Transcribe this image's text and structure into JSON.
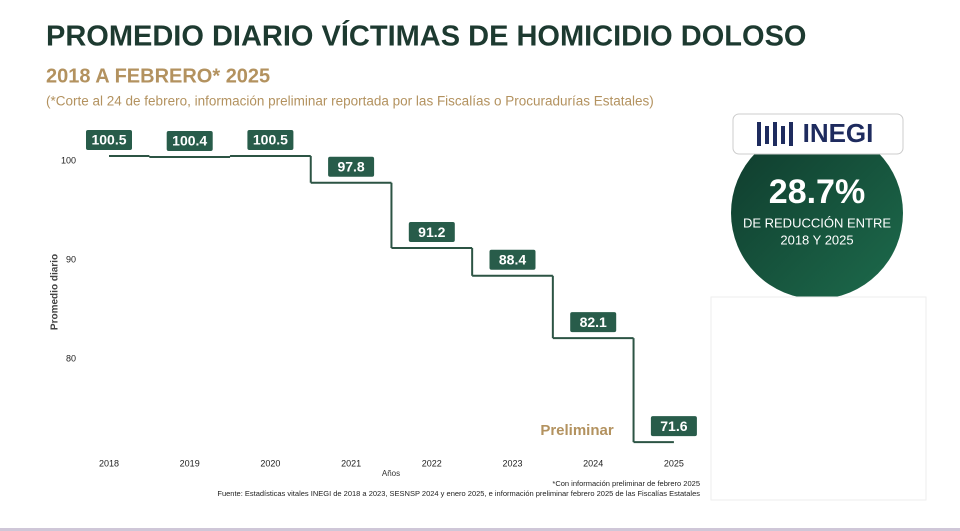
{
  "chart_data": {
    "type": "step",
    "title": "PROMEDIO DIARIO VÍCTIMAS DE HOMICIDIO DOLOSO",
    "subtitle": "2018 A FEBRERO* 2025",
    "note": "(*Corte al 24 de febrero, información preliminar reportada por las Fiscalías o Procuradurías Estatales)",
    "categories": [
      "2018",
      "2019",
      "2020",
      "2021",
      "2022",
      "2023",
      "2024",
      "2025"
    ],
    "values": [
      100.5,
      100.4,
      100.5,
      97.8,
      91.2,
      88.4,
      82.1,
      71.6
    ],
    "color": "#2c5444",
    "label_color": "#285c4a",
    "ylim": [
      70,
      101
    ],
    "yticks": [
      80,
      90,
      100
    ],
    "y_label": "Promedio diario",
    "x_label": "Años",
    "annotation": "Preliminar",
    "footnote": "*Con información preliminar de febrero 2025",
    "source": "Fuente: Estadísticas vitales INEGI de 2018 a 2023, SESNSP 2024 y enero 2025, e información preliminar febrero 2025 de las Fiscalías Estatales",
    "logo": "INEGI",
    "highlight_value": "28.7%",
    "highlight_text": [
      "DE REDUCCIÓN ENTRE",
      "2018 Y 2025"
    ]
  }
}
